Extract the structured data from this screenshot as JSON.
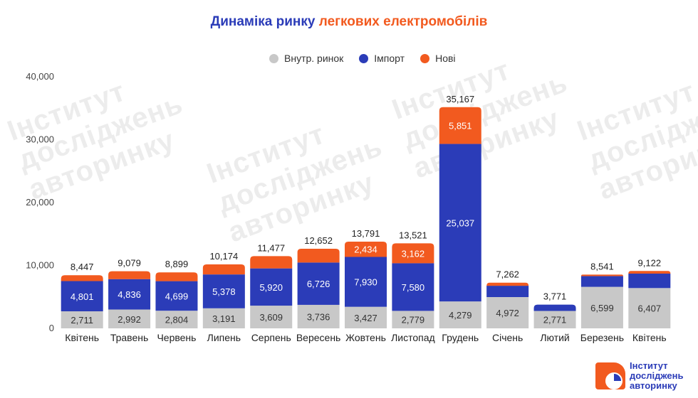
{
  "title": {
    "part1": "Динаміка ринку",
    "part2": "легкових електромобілів"
  },
  "colors": {
    "domestic": "#c8c8c8",
    "import": "#2b3cb8",
    "new": "#f25a1f",
    "title_blue": "#2b3cb8",
    "title_orange": "#f25a1f"
  },
  "watermark_text": "Інститут дослідженьавторинку",
  "logo": {
    "line1": "Інститут",
    "line2": "досліджень",
    "line3": "авторинку"
  },
  "chart_data": {
    "type": "bar",
    "stacked": true,
    "title": "Динаміка ринку легкових електромобілів",
    "categories": [
      "Квітень",
      "Травень",
      "Червень",
      "Липень",
      "Серпень",
      "Вересень",
      "Жовтень",
      "Листопад",
      "Грудень",
      "Січень",
      "Лютий",
      "Березень",
      "Квітень"
    ],
    "series": [
      {
        "name": "Внутр. ринок",
        "color": "#c8c8c8",
        "values": [
          2711,
          2992,
          2804,
          3191,
          3609,
          3736,
          3427,
          2779,
          4279,
          4972,
          2771,
          6599,
          6407
        ]
      },
      {
        "name": "Імпорт",
        "color": "#2b3cb8",
        "values": [
          4801,
          4836,
          4699,
          5378,
          5920,
          6726,
          7930,
          7580,
          25037,
          1800,
          1000,
          1700,
          2300
        ]
      },
      {
        "name": "Нові",
        "color": "#f25a1f",
        "values": [
          935,
          1251,
          1396,
          1605,
          1948,
          2190,
          2434,
          3162,
          5851,
          490,
          0,
          242,
          415
        ]
      }
    ],
    "segment_labels": {
      "Внутр. ринок": [
        "2,711",
        "2,992",
        "2,804",
        "3,191",
        "3,609",
        "3,736",
        "3,427",
        "2,779",
        "4,279",
        "4,972",
        "2,771",
        "6,599",
        "6,407"
      ],
      "Імпорт": [
        "4,801",
        "4,836",
        "4,699",
        "5,378",
        "5,920",
        "6,726",
        "7,930",
        "7,580",
        "25,037",
        "",
        "",
        "",
        ""
      ],
      "Нові": [
        "",
        "",
        "",
        "",
        "",
        "",
        "2,434",
        "3,162",
        "5,851",
        "",
        "",
        "",
        ""
      ]
    },
    "totals": [
      "8,447",
      "9,079",
      "8,899",
      "10,174",
      "11,477",
      "12,652",
      "13,791",
      "13,521",
      "35,167",
      "7,262",
      "3,771",
      "8,541",
      "9,122"
    ],
    "y_ticks": [
      "0",
      "10,000",
      "20,000",
      "30,000",
      "40,000"
    ],
    "ylim": [
      0,
      40000
    ],
    "grid": false,
    "legend_position": "top-center"
  }
}
